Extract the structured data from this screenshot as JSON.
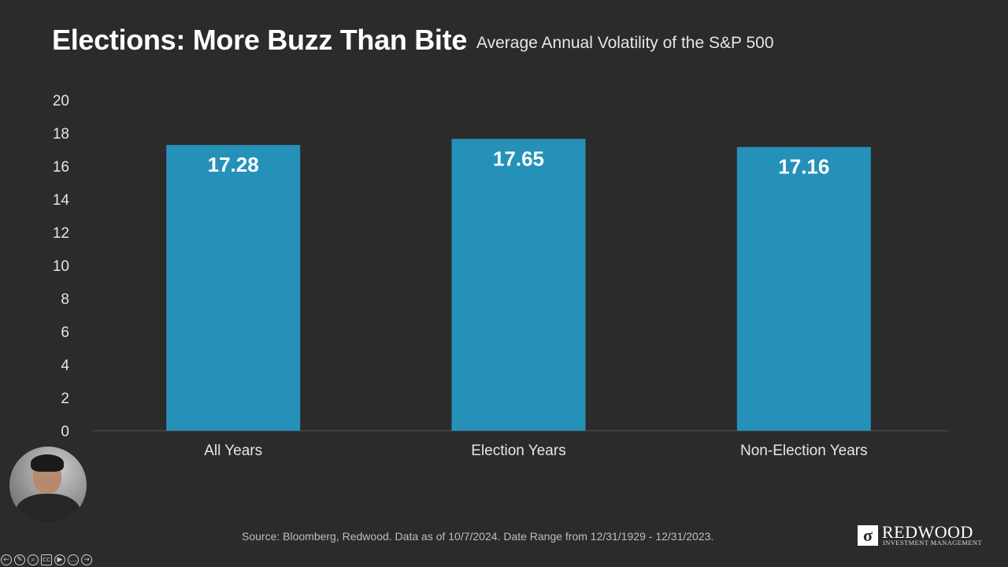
{
  "slide": {
    "title": "Elections: More Buzz Than Bite",
    "subtitle": "Average Annual Volatility of the S&P 500",
    "source": "Source: Bloomberg, Redwood. Data as of 10/7/2024. Date Range from 12/31/1929 - 12/31/2023."
  },
  "logo": {
    "mark": "σ",
    "name": "REDWOOD",
    "tagline": "INVESTMENT MANAGEMENT"
  },
  "colors": {
    "background": "#2b2b2b",
    "bar": "#2591b8",
    "text": "#ffffff"
  },
  "controls": [
    {
      "icon": "previous-icon",
      "glyph": "←"
    },
    {
      "icon": "pen-icon",
      "glyph": "✎"
    },
    {
      "icon": "zoom-icon",
      "glyph": "⌕"
    },
    {
      "icon": "captions-icon",
      "glyph": "cc"
    },
    {
      "icon": "camera-icon",
      "glyph": "▶"
    },
    {
      "icon": "more-icon",
      "glyph": "…"
    },
    {
      "icon": "next-icon",
      "glyph": "→"
    }
  ],
  "chart_data": {
    "type": "bar",
    "title": "",
    "xlabel": "",
    "ylabel": "",
    "categories": [
      "All Years",
      "Election Years",
      "Non-Election Years"
    ],
    "values": [
      17.28,
      17.65,
      17.16
    ],
    "data_labels": [
      "17.28",
      "17.65",
      "17.16"
    ],
    "ylim": [
      0,
      20
    ],
    "yticks": [
      "0",
      "2",
      "4",
      "6",
      "8",
      "10",
      "12",
      "14",
      "16",
      "18",
      "20"
    ],
    "grid": false,
    "legend": "none"
  }
}
